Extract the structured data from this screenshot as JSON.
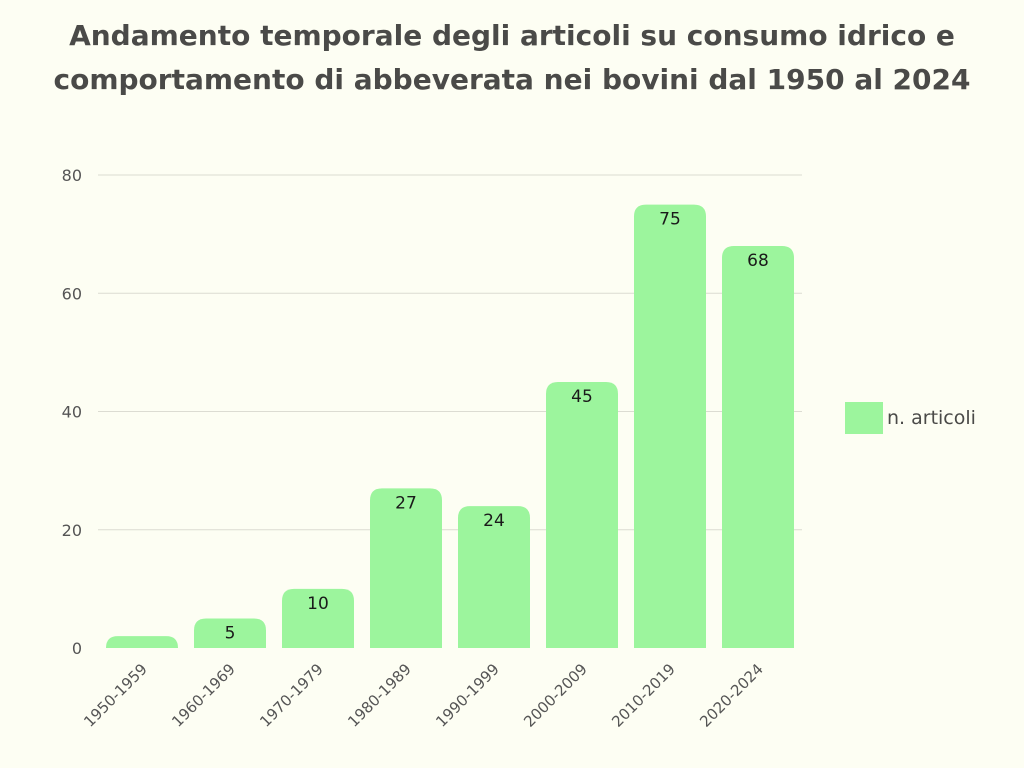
{
  "chart_data": {
    "type": "bar",
    "title": [
      "Andamento temporale degli articoli su consumo idrico e",
      "comportamento di abbeverata nei bovini dal 1950 al 2024"
    ],
    "categories": [
      "1950-1959",
      "1960-1969",
      "1970-1979",
      "1980-1989",
      "1990-1999",
      "2000-2009",
      "2010-2019",
      "2020-2024"
    ],
    "series": [
      {
        "name": "n. articoli",
        "values": [
          2,
          5,
          10,
          27,
          24,
          45,
          75,
          68
        ],
        "data_labels": [
          "",
          "5",
          "10",
          "27",
          "24",
          "45",
          "75",
          "68"
        ],
        "color": "#9CF59D"
      }
    ],
    "ylim": [
      0,
      80
    ],
    "yticks": [
      0,
      20,
      40,
      60,
      80
    ],
    "grid": true,
    "legend_position": "right",
    "colors": {
      "background": "#FDFEF3",
      "text": "#4a4a48",
      "axis_text": "#555555",
      "gridline": "#dcdcd2"
    }
  }
}
